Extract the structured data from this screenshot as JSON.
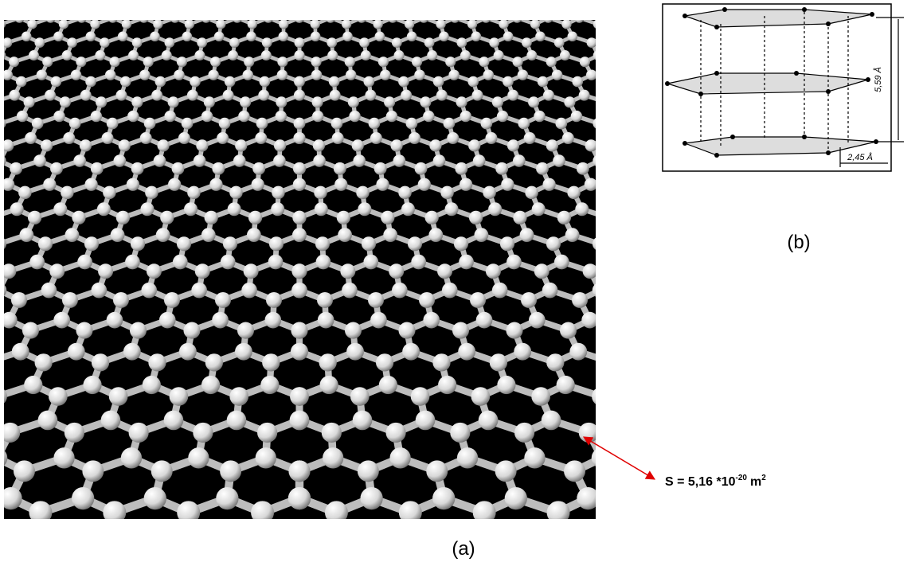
{
  "panels": [
    {
      "label": "(a)"
    },
    {
      "label": "(b)",
      "dimensions": [
        "5,59 Å",
        "2,45 Å"
      ]
    }
  ],
  "annotation": {
    "text": "S = 5,16 *10",
    "exponent": "-20",
    "unit": "m",
    "unit_exponent": "2"
  }
}
